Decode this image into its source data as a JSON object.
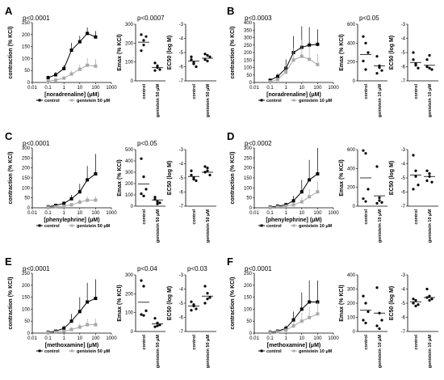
{
  "chart_data": [
    {
      "panel": "A",
      "type": "line",
      "curve": {
        "xlabel": "[noradrenaline] (μM)",
        "ylabel": "contraction (% KCl)",
        "ylim": [
          0,
          250
        ],
        "yticks": [
          0,
          50,
          100,
          150,
          200,
          250
        ],
        "xticks": [
          "0.01",
          "0.1",
          "1",
          "10",
          "100",
          "1000"
        ],
        "xlog": true,
        "p": "p<0.0001",
        "series": [
          {
            "name": "control",
            "color": "#000000",
            "x": [
              0.1,
              0.3,
              1,
              3,
              10,
              30,
              100
            ],
            "y": [
              20,
              32,
              58,
              135,
              170,
              205,
              190
            ],
            "err": [
              8,
              12,
              15,
              30,
              25,
              25,
              25
            ]
          },
          {
            "name": "genistein 50 μM",
            "color": "#a8a8a8",
            "x": [
              0.1,
              0.3,
              1,
              3,
              10,
              30,
              100
            ],
            "y": [
              5,
              10,
              18,
              35,
              55,
              72,
              68
            ],
            "err": [
              3,
              5,
              8,
              15,
              20,
              30,
              30
            ]
          }
        ]
      },
      "emax": {
        "ylabel": "Emax (% KCl)",
        "ylim": [
          0,
          300
        ],
        "yticks": [
          0,
          100,
          200,
          300
        ],
        "p": "p<0.0007",
        "groups": [
          {
            "label": "control",
            "mean": 205,
            "points": [
              245,
              215,
              235,
              160,
              190
            ]
          },
          {
            "label": "genistein 50 μM",
            "mean": 70,
            "points": [
              95,
              70,
              60,
              55,
              80
            ]
          }
        ]
      },
      "ec50": {
        "ylabel": "EC50 (log M)",
        "ylim": [
          -7,
          -3
        ],
        "yticks": [
          -3,
          -4,
          -5,
          -6,
          -7
        ],
        "p": "",
        "groups": [
          {
            "label": "control",
            "mean": -5.6,
            "points": [
              -5.3,
              -5.8,
              -6.0,
              -5.5,
              -5.7
            ]
          },
          {
            "label": "genistein 50 μM",
            "mean": -5.4,
            "points": [
              -5.1,
              -5.6,
              -5.3,
              -5.5,
              -5.2
            ]
          }
        ]
      }
    },
    {
      "panel": "B",
      "type": "line",
      "curve": {
        "xlabel": "[noradrenaline] (μM)",
        "ylabel": "contraction (% KCl)",
        "ylim": [
          0,
          400
        ],
        "yticks": [
          0,
          50,
          100,
          150,
          200,
          250,
          300,
          350,
          400
        ],
        "xticks": [
          "0.01",
          "0.1",
          "1",
          "10",
          "100",
          "1000"
        ],
        "xlog": true,
        "p": "p<0.0003",
        "series": [
          {
            "name": "control",
            "color": "#000000",
            "x": [
              0.1,
              0.3,
              1,
              3,
              10,
              30,
              100
            ],
            "y": [
              15,
              40,
              95,
              200,
              235,
              250,
              255
            ],
            "err": [
              8,
              20,
              60,
              110,
              140,
              120,
              100
            ]
          },
          {
            "name": "genistein 10 μM",
            "color": "#a8a8a8",
            "x": [
              0.1,
              0.3,
              1,
              3,
              10,
              30,
              100
            ],
            "y": [
              5,
              20,
              70,
              150,
              175,
              155,
              120
            ],
            "err": [
              5,
              15,
              45,
              80,
              110,
              90,
              70
            ]
          }
        ]
      },
      "emax": {
        "ylabel": "Emax (% KCl)",
        "ylim": [
          0,
          600
        ],
        "yticks": [
          0,
          200,
          400,
          600
        ],
        "p": "p<0.05",
        "groups": [
          {
            "label": "control",
            "mean": 280,
            "points": [
              470,
              400,
              300,
              210,
              120
            ]
          },
          {
            "label": "genistein 10 μM",
            "mean": 160,
            "points": [
              260,
              160,
              110,
              80,
              140
            ]
          }
        ]
      },
      "ec50": {
        "ylabel": "EC50 (log M)",
        "ylim": [
          -7,
          -3
        ],
        "yticks": [
          -3,
          -4,
          -5,
          -6,
          -7
        ],
        "p": "",
        "groups": [
          {
            "label": "control",
            "mean": -5.7,
            "points": [
              -5.0,
              -5.8,
              -6.1,
              -5.5,
              -5.9
            ]
          },
          {
            "label": "genistein 10 μM",
            "mean": -5.9,
            "points": [
              -5.5,
              -5.2,
              -6.2,
              -6.0,
              -6.1
            ]
          }
        ]
      }
    },
    {
      "panel": "C",
      "type": "line",
      "curve": {
        "xlabel": "[phenylephrine] (μM)",
        "ylabel": "contraction (% KCl)",
        "ylim": [
          0,
          300
        ],
        "yticks": [
          0,
          50,
          100,
          150,
          200,
          250,
          300
        ],
        "xticks": [
          "0.01",
          "0.1",
          "1",
          "10",
          "100",
          "1000"
        ],
        "xlog": true,
        "p": "p<0.0001",
        "series": [
          {
            "name": "control",
            "color": "#000000",
            "x": [
              0.1,
              0.3,
              1,
              3,
              10,
              30,
              100
            ],
            "y": [
              5,
              12,
              22,
              45,
              80,
              140,
              170
            ],
            "err": [
              3,
              5,
              10,
              20,
              40,
              70,
              100
            ]
          },
          {
            "name": "genistein 50 μM",
            "color": "#a8a8a8",
            "x": [
              0.1,
              0.3,
              1,
              3,
              10,
              30,
              100
            ],
            "y": [
              2,
              5,
              8,
              15,
              28,
              38,
              38
            ],
            "err": [
              2,
              3,
              5,
              8,
              15,
              20,
              20
            ]
          }
        ]
      },
      "emax": {
        "ylabel": "Emax (% KCl)",
        "ylim": [
          0,
          500
        ],
        "yticks": [
          0,
          100,
          200,
          300,
          400,
          500
        ],
        "p": "p<0.05",
        "groups": [
          {
            "label": "control",
            "mean": 195,
            "points": [
              420,
              260,
              150,
              110,
              90
            ]
          },
          {
            "label": "genistein 50 μM",
            "mean": 55,
            "points": [
              80,
              40,
              30,
              60,
              20
            ]
          }
        ]
      },
      "ec50": {
        "ylabel": "EC50 (log M)",
        "ylim": [
          -7,
          -3
        ],
        "yticks": [
          -3,
          -4,
          -5,
          -6,
          -7
        ],
        "p": "",
        "groups": [
          {
            "label": "control",
            "mean": -4.9,
            "points": [
              -4.5,
              -5.0,
              -5.2,
              -4.8,
              -5.1
            ]
          },
          {
            "label": "genistein 50 μM",
            "mean": -4.6,
            "points": [
              -4.2,
              -4.5,
              -4.8,
              -4.6,
              -4.3
            ]
          }
        ]
      }
    },
    {
      "panel": "D",
      "type": "line",
      "curve": {
        "xlabel": "[phenylephrine] (μM)",
        "ylabel": "contraction (% KCl)",
        "ylim": [
          0,
          300
        ],
        "yticks": [
          0,
          50,
          100,
          150,
          200,
          250,
          300
        ],
        "xticks": [
          "0.01",
          "0.1",
          "1",
          "10",
          "100",
          "1000"
        ],
        "xlog": true,
        "p": "p<0.0002",
        "series": [
          {
            "name": "control",
            "color": "#000000",
            "x": [
              0.1,
              0.3,
              1,
              3,
              10,
              30,
              100
            ],
            "y": [
              4,
              8,
              15,
              35,
              80,
              140,
              170
            ],
            "err": [
              3,
              5,
              10,
              25,
              60,
              100,
              130
            ]
          },
          {
            "name": "genistein 10 μM",
            "color": "#a8a8a8",
            "x": [
              0.1,
              0.3,
              1,
              3,
              10,
              30,
              100
            ],
            "y": [
              2,
              4,
              8,
              15,
              30,
              55,
              80
            ],
            "err": [
              2,
              3,
              5,
              10,
              25,
              40,
              50
            ]
          }
        ]
      },
      "emax": {
        "ylabel": "Emax (% KCl)",
        "ylim": [
          0,
          600
        ],
        "yticks": [
          0,
          200,
          400,
          600
        ],
        "p": "",
        "groups": [
          {
            "label": "control",
            "mean": 300,
            "points": [
              590,
              560,
              180,
              80,
              50
            ]
          },
          {
            "label": "genistein 10 μM",
            "mean": 110,
            "points": [
              420,
              90,
              40,
              30,
              60
            ]
          }
        ]
      },
      "ec50": {
        "ylabel": "EC50 (log M)",
        "ylim": [
          -7,
          -3
        ],
        "yticks": [
          -3,
          -4,
          -5,
          -6,
          -7
        ],
        "p": "",
        "groups": [
          {
            "label": "control",
            "mean": -4.8,
            "points": [
              -3.4,
              -4.5,
              -5.5,
              -5.8,
              -4.9
            ]
          },
          {
            "label": "genistein 10 μM",
            "mean": -4.9,
            "points": [
              -4.5,
              -4.9,
              -5.3,
              -5.2,
              -4.7
            ]
          }
        ]
      }
    },
    {
      "panel": "E",
      "type": "line",
      "curve": {
        "xlabel": "[methoxamine] (μM)",
        "ylabel": "contraction (% KCl)",
        "ylim": [
          0,
          250
        ],
        "yticks": [
          0,
          50,
          100,
          150,
          200,
          250
        ],
        "xticks": [
          "0.01",
          "0.1",
          "1",
          "10",
          "100",
          "1000"
        ],
        "xlog": true,
        "p": "p<0.0001",
        "series": [
          {
            "name": "control",
            "color": "#000000",
            "x": [
              0.1,
              0.3,
              1,
              3,
              10,
              30,
              100
            ],
            "y": [
              4,
              8,
              20,
              50,
              90,
              130,
              145
            ],
            "err": [
              3,
              5,
              12,
              30,
              60,
              80,
              80
            ]
          },
          {
            "name": "genistein 50 μM",
            "color": "#a8a8a8",
            "x": [
              0.1,
              0.3,
              1,
              3,
              10,
              30,
              100
            ],
            "y": [
              2,
              4,
              8,
              15,
              25,
              35,
              35
            ],
            "err": [
              2,
              3,
              5,
              10,
              15,
              25,
              25
            ]
          }
        ]
      },
      "emax": {
        "ylabel": "Emax (% KCl)",
        "ylim": [
          0,
          300
        ],
        "yticks": [
          0,
          100,
          200,
          300
        ],
        "p": "p<0.04",
        "groups": [
          {
            "label": "control",
            "mean": 155,
            "points": [
              270,
              240,
              110,
              90,
              85
            ]
          },
          {
            "label": "genistein 50 μM",
            "mean": 40,
            "points": [
              70,
              45,
              35,
              25,
              30
            ]
          }
        ]
      },
      "ec50": {
        "ylabel": "EC50 (log M)",
        "ylim": [
          -7,
          -3
        ],
        "yticks": [
          -3,
          -4,
          -5,
          -6,
          -7
        ],
        "p": "p<0.03",
        "groups": [
          {
            "label": "control",
            "mean": -5.2,
            "points": [
              -4.9,
              -5.1,
              -5.4,
              -5.5,
              -5.2
            ]
          },
          {
            "label": "genistein 50 μM",
            "mean": -4.5,
            "points": [
              -3.8,
              -4.3,
              -4.6,
              -5.0,
              -4.7
            ]
          }
        ]
      }
    },
    {
      "panel": "F",
      "type": "line",
      "curve": {
        "xlabel": "[methoxamine] (μM)",
        "ylabel": "contraction (% KCl)",
        "ylim": [
          0,
          250
        ],
        "yticks": [
          0,
          50,
          100,
          150,
          200,
          250
        ],
        "xticks": [
          "0.01",
          "0.1",
          "1",
          "10",
          "100",
          "1000"
        ],
        "xlog": true,
        "p": "p<0.0001",
        "series": [
          {
            "name": "control",
            "color": "#000000",
            "x": [
              0.1,
              0.3,
              1,
              3,
              10,
              30,
              100
            ],
            "y": [
              4,
              8,
              20,
              55,
              100,
              130,
              130
            ],
            "err": [
              3,
              5,
              12,
              35,
              70,
              90,
              90
            ]
          },
          {
            "name": "genistein 10 μM",
            "color": "#a8a8a8",
            "x": [
              0.1,
              0.3,
              1,
              3,
              10,
              30,
              100
            ],
            "y": [
              2,
              5,
              12,
              30,
              50,
              65,
              80
            ],
            "err": [
              2,
              3,
              8,
              20,
              35,
              45,
              50
            ]
          }
        ]
      },
      "emax": {
        "ylabel": "Emax (% KCl)",
        "ylim": [
          0,
          400
        ],
        "yticks": [
          0,
          100,
          200,
          300,
          400
        ],
        "p": "",
        "groups": [
          {
            "label": "control",
            "mean": 150,
            "points": [
              250,
              200,
              140,
              80,
              60
            ]
          },
          {
            "label": "genistein 10 μM",
            "mean": 130,
            "points": [
              310,
              130,
              80,
              40,
              20
            ]
          }
        ]
      },
      "ec50": {
        "ylabel": "EC50 (log M)",
        "ylim": [
          -7,
          -3
        ],
        "yticks": [
          -3,
          -4,
          -5,
          -6,
          -7
        ],
        "p": "",
        "groups": [
          {
            "label": "control",
            "mean": -4.9,
            "points": [
              -4.7,
              -4.8,
              -5.1,
              -5.0,
              -5.2
            ]
          },
          {
            "label": "genistein 10 μM",
            "mean": -4.6,
            "points": [
              -4.0,
              -4.5,
              -4.7,
              -4.6,
              -4.8
            ]
          }
        ]
      }
    }
  ]
}
